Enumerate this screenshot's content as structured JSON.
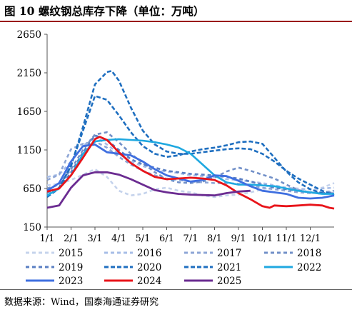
{
  "title": "图 10 螺纹钢总库存下降（单位：万吨）",
  "source": "数据来源：Wind，国泰海通证券研究",
  "chart_data": {
    "type": "line",
    "title": "图 10 螺纹钢总库存下降（单位：万吨）",
    "xlabel": "",
    "ylabel": "",
    "unit": "万吨",
    "ylim": [
      150,
      2650
    ],
    "yticks": [
      150,
      650,
      1150,
      1650,
      2150,
      2650
    ],
    "xlim": [
      1,
      13
    ],
    "xticks": [
      {
        "label": "1/1",
        "x": 1
      },
      {
        "label": "2/1",
        "x": 2
      },
      {
        "label": "3/1",
        "x": 3
      },
      {
        "label": "4/1",
        "x": 4
      },
      {
        "label": "5/1",
        "x": 5
      },
      {
        "label": "6/1",
        "x": 6
      },
      {
        "label": "7/1",
        "x": 7
      },
      {
        "label": "8/1",
        "x": 8
      },
      {
        "label": "9/1",
        "x": 9
      },
      {
        "label": "10/1",
        "x": 10
      },
      {
        "label": "11/1",
        "x": 11
      },
      {
        "label": "12/1",
        "x": 12
      }
    ],
    "grid": false,
    "legend_position": "bottom",
    "series": [
      {
        "name": "2015",
        "color": "#c5d3ec",
        "dash": "5,4",
        "width": 2.6,
        "x": [
          1,
          1.5,
          2,
          2.5,
          3,
          3.5,
          4,
          4.5,
          5,
          5.5,
          6,
          6.5,
          7,
          7.5,
          8,
          8.5,
          9,
          9.5,
          10,
          10.5,
          11,
          11.5,
          12,
          12.5,
          13
        ],
        "y": [
          690,
          710,
          760,
          830,
          900,
          800,
          620,
          560,
          580,
          640,
          660,
          620,
          600,
          560,
          540,
          560,
          570,
          600,
          640,
          670,
          660,
          650,
          640,
          660,
          720
        ]
      },
      {
        "name": "2016",
        "color": "#a7bde7",
        "dash": "5,4",
        "width": 2.6,
        "x": [
          1,
          1.5,
          2,
          2.5,
          3,
          3.5,
          4,
          4.5,
          5,
          5.5,
          6,
          6.5,
          7,
          7.5,
          8,
          8.5,
          9,
          9.5,
          10,
          10.5,
          11,
          11.5,
          12,
          12.5,
          13
        ],
        "y": [
          800,
          830,
          1000,
          1200,
          1330,
          1220,
          1100,
          1000,
          940,
          890,
          870,
          850,
          820,
          810,
          800,
          770,
          760,
          740,
          720,
          690,
          660,
          640,
          640,
          650,
          660
        ]
      },
      {
        "name": "2017",
        "color": "#8ea6d6",
        "dash": "5,4",
        "width": 2.6,
        "x": [
          1,
          1.5,
          2,
          2.5,
          3,
          3.5,
          4,
          4.5,
          5,
          5.5,
          6,
          6.5,
          7,
          7.5,
          8,
          8.5,
          9,
          9.5,
          10,
          10.5,
          11,
          11.5,
          12,
          12.5,
          13
        ],
        "y": [
          760,
          830,
          1160,
          1230,
          1260,
          1180,
          1060,
          960,
          880,
          820,
          780,
          760,
          740,
          730,
          720,
          720,
          710,
          690,
          660,
          640,
          620,
          600,
          590,
          600,
          620
        ]
      },
      {
        "name": "2018",
        "color": "#7290c8",
        "dash": "5,4",
        "width": 2.6,
        "x": [
          1,
          1.5,
          2,
          2.5,
          3,
          3.5,
          4,
          4.5,
          5,
          5.5,
          6,
          6.5,
          7,
          7.5,
          8,
          8.5,
          9,
          9.5,
          10,
          10.5,
          11,
          11.5,
          12,
          12.5,
          13
        ],
        "y": [
          650,
          700,
          900,
          1150,
          1350,
          1380,
          1250,
          1100,
          980,
          860,
          770,
          730,
          720,
          740,
          790,
          870,
          920,
          880,
          830,
          780,
          700,
          630,
          600,
          580,
          590
        ]
      },
      {
        "name": "2019",
        "color": "#5a7fc3",
        "dash": "5,4",
        "width": 2.6,
        "x": [
          1,
          1.5,
          2,
          2.5,
          3,
          3.5,
          4,
          4.5,
          5,
          5.5,
          6,
          6.5,
          7,
          7.5,
          8,
          8.5,
          9,
          9.5,
          10,
          10.5,
          11,
          11.5,
          12,
          12.5,
          13
        ],
        "y": [
          600,
          650,
          860,
          1120,
          1340,
          1280,
          1150,
          1030,
          960,
          920,
          880,
          860,
          840,
          830,
          820,
          800,
          780,
          740,
          700,
          660,
          640,
          620,
          600,
          590,
          600
        ]
      },
      {
        "name": "2020",
        "color": "#1f6fc0",
        "dash": "6,3",
        "width": 2.6,
        "x": [
          1,
          1.5,
          2,
          2.5,
          3,
          3.5,
          3.7,
          4,
          4.5,
          5,
          5.5,
          6,
          6.5,
          7,
          7.5,
          8,
          8.5,
          9,
          9.5,
          10,
          10.5,
          11,
          11.5,
          12,
          12.5,
          13
        ],
        "y": [
          560,
          660,
          940,
          1450,
          2000,
          2160,
          2175,
          2050,
          1700,
          1400,
          1220,
          1130,
          1100,
          1100,
          1120,
          1140,
          1160,
          1170,
          1160,
          1100,
          1000,
          880,
          780,
          700,
          620,
          560
        ]
      },
      {
        "name": "2021",
        "color": "#1f6fc0",
        "dash": "6,3",
        "width": 2.6,
        "x": [
          1,
          1.5,
          2,
          2.5,
          3,
          3.5,
          4,
          4.5,
          5,
          5.5,
          6,
          6.5,
          7,
          7.5,
          8,
          8.5,
          9,
          9.5,
          10,
          10.5,
          11,
          11.5,
          12,
          12.5,
          13
        ],
        "y": [
          540,
          650,
          950,
          1400,
          1850,
          1800,
          1600,
          1380,
          1200,
          1100,
          1060,
          1080,
          1130,
          1160,
          1180,
          1210,
          1250,
          1260,
          1230,
          1050,
          870,
          730,
          640,
          590,
          580
        ]
      },
      {
        "name": "2022",
        "color": "#1fa8e0",
        "dash": "",
        "width": 2.6,
        "x": [
          1,
          1.5,
          2,
          2.5,
          3,
          3.5,
          4,
          4.5,
          5,
          5.5,
          6,
          6.5,
          7,
          7.5,
          8,
          8.5,
          9,
          9.5,
          10,
          10.5,
          11,
          11.5,
          12,
          12.5,
          13
        ],
        "y": [
          560,
          650,
          820,
          1100,
          1260,
          1280,
          1290,
          1280,
          1270,
          1250,
          1220,
          1180,
          1100,
          960,
          820,
          730,
          700,
          700,
          690,
          680,
          650,
          620,
          600,
          580,
          580
        ]
      },
      {
        "name": "2023",
        "color": "#3f6fe0",
        "dash": "",
        "width": 2.8,
        "x": [
          1,
          1.5,
          2,
          2.5,
          3,
          3.5,
          4,
          4.5,
          5,
          5.5,
          6,
          6.5,
          7,
          7.5,
          8,
          8.5,
          9,
          9.5,
          10,
          10.5,
          11,
          11.5,
          12,
          12.5,
          13
        ],
        "y": [
          620,
          720,
          1000,
          1200,
          1220,
          1120,
          1100,
          1080,
          1000,
          900,
          820,
          780,
          740,
          760,
          820,
          810,
          750,
          680,
          620,
          600,
          580,
          530,
          520,
          530,
          560
        ]
      },
      {
        "name": "2024",
        "color": "#e8141a",
        "dash": "",
        "width": 2.8,
        "x": [
          1,
          1.5,
          2,
          2.5,
          3,
          3.2,
          3.5,
          4,
          4.5,
          5,
          5.5,
          6,
          6.5,
          7,
          7.5,
          8,
          8.5,
          9,
          9.5,
          10,
          10.3,
          10.5,
          11,
          11.5,
          12,
          12.5,
          12.8,
          13
        ],
        "y": [
          610,
          650,
          820,
          1050,
          1290,
          1320,
          1280,
          1120,
          980,
          880,
          800,
          770,
          780,
          790,
          780,
          760,
          690,
          590,
          510,
          420,
          400,
          430,
          420,
          430,
          440,
          430,
          400,
          390
        ]
      },
      {
        "name": "2025",
        "color": "#6b2c91",
        "dash": "",
        "width": 2.8,
        "x": [
          1,
          1.5,
          2,
          2.5,
          3,
          3.5,
          4,
          4.5,
          5,
          5.5,
          6,
          6.5,
          7,
          7.5,
          8,
          8.5,
          9,
          9.5
        ],
        "y": [
          400,
          430,
          660,
          820,
          860,
          860,
          830,
          770,
          700,
          630,
          600,
          580,
          570,
          565,
          560,
          590,
          610,
          620
        ]
      }
    ]
  }
}
